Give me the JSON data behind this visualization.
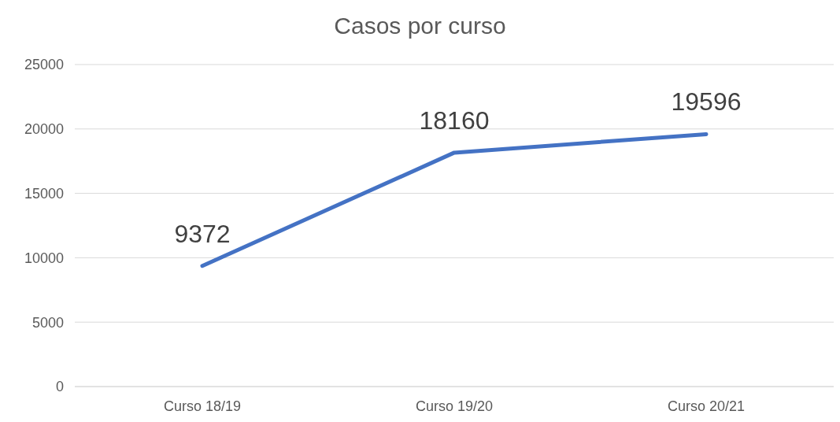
{
  "chart_data": {
    "type": "line",
    "title": "Casos por curso",
    "categories": [
      "Curso 18/19",
      "Curso 19/20",
      "Curso 20/21"
    ],
    "values": [
      9372,
      18160,
      19596
    ],
    "color": "#4472c4",
    "ylim": [
      0,
      25000
    ],
    "yticks": [
      0,
      5000,
      10000,
      15000,
      20000,
      25000
    ],
    "grid": "y",
    "marker": "none",
    "line_style": "solid",
    "data_labels": true
  }
}
